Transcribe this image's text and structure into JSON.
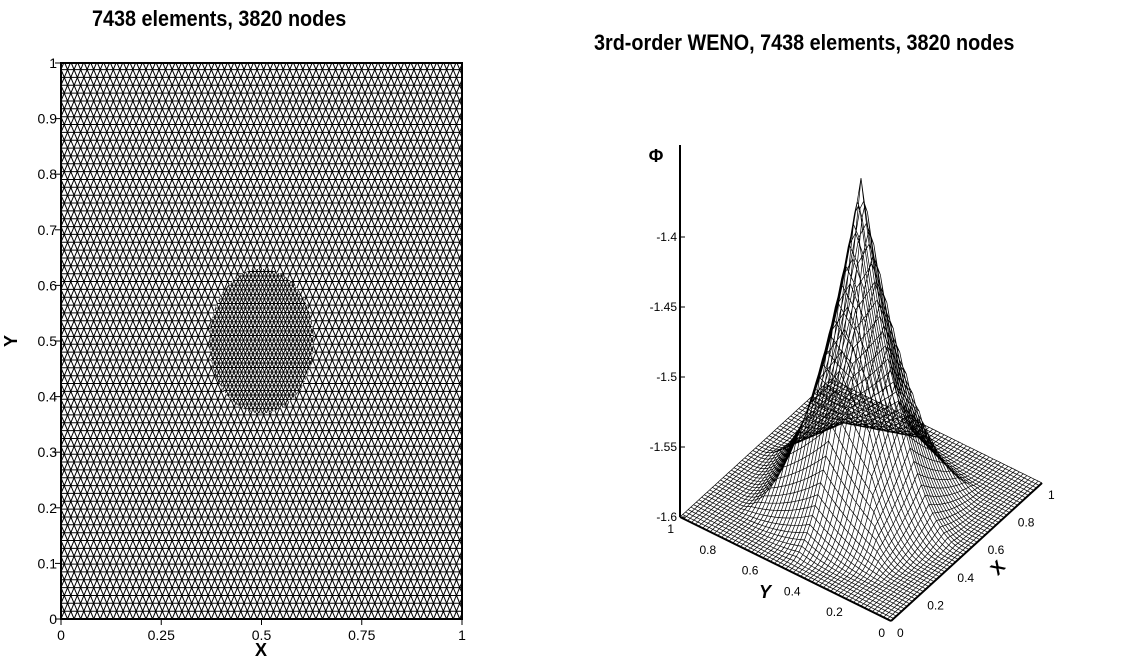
{
  "chart_data": [
    {
      "type": "mesh",
      "title": "7438 elements, 3820 nodes",
      "xlabel": "X",
      "ylabel": "Y",
      "xlim": [
        0,
        1
      ],
      "ylim": [
        0,
        1
      ],
      "x_ticks": [
        "0",
        "0.25",
        "0.5",
        "0.75",
        "1"
      ],
      "y_ticks": [
        "0",
        "0.1",
        "0.2",
        "0.3",
        "0.4",
        "0.5",
        "0.6",
        "0.7",
        "0.8",
        "0.9",
        "1"
      ],
      "elements": 7438,
      "nodes": 3820,
      "refined_region": {
        "x": [
          0.37,
          0.63
        ],
        "y": [
          0.37,
          0.63
        ]
      }
    },
    {
      "type": "surface",
      "title": "3rd-order WENO, 7438 elements, 3820 nodes",
      "xlabel": "X",
      "ylabel": "Y",
      "zlabel": "Φ",
      "xlim": [
        0,
        1
      ],
      "ylim": [
        0,
        1
      ],
      "zlim": [
        -1.6,
        -1.37
      ],
      "x_ticks": [
        "0",
        "0.2",
        "0.4",
        "0.6",
        "0.8",
        "1"
      ],
      "y_ticks": [
        "0",
        "0.2",
        "0.4",
        "0.6",
        "0.8",
        "1"
      ],
      "z_ticks": [
        "-1.6",
        "-1.55",
        "-1.5",
        "-1.45",
        "-1.4"
      ],
      "peak": {
        "x": 0.5,
        "y": 0.5,
        "z": -1.37
      },
      "boundary_value": -1.6
    }
  ]
}
